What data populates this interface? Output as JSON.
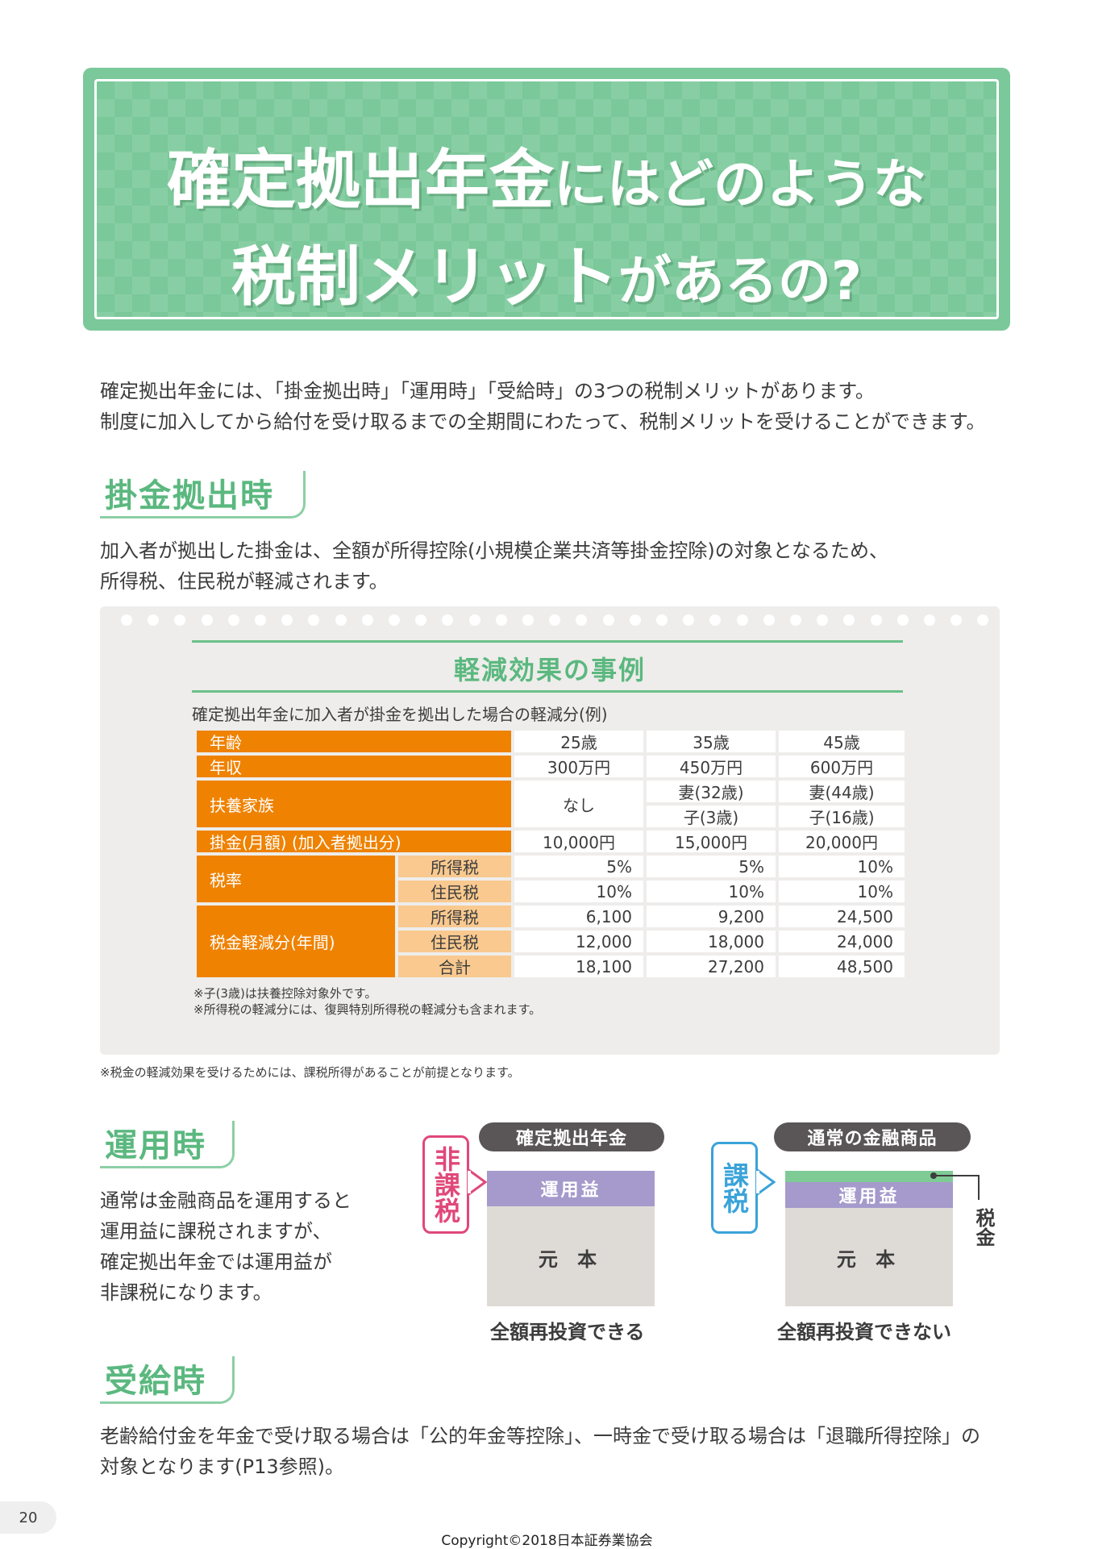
{
  "title": {
    "line1_bold": "確定拠出年金",
    "line1_rest": "にはどのような",
    "line2_bold": "税制メリット",
    "line2_rest": "があるの?"
  },
  "intro": [
    "確定拠出年金には、「掛金拠出時」「運用時」「受給時」の3つの税制メリットがあります。",
    "制度に加入してから給付を受け取るまでの全期間にわたって、税制メリットを受けることができます。"
  ],
  "section1": {
    "heading": "掛金拠出時",
    "text": [
      "加入者が拠出した掛金は、全額が所得控除(小規模企業共済等掛金控除)の対象となるため、",
      "所得税、住民税が軽減されます。"
    ]
  },
  "table": {
    "title": "軽減効果の事例",
    "subtitle": "確定拠出年金に加入者が掛金を拠出した場合の軽減分(例)",
    "rows": {
      "age": {
        "label": "年齢",
        "values": [
          "25歳",
          "35歳",
          "45歳"
        ]
      },
      "income": {
        "label": "年収",
        "values": [
          "300万円",
          "450万円",
          "600万円"
        ]
      },
      "family": {
        "label": "扶養家族",
        "col1": "なし",
        "spouse": [
          "妻(32歳)",
          "妻(44歳)"
        ],
        "child": [
          "子(3歳)",
          "子(16歳)"
        ]
      },
      "contribution": {
        "label": "掛金(月額) (加入者拠出分)",
        "values": [
          "10,000円",
          "15,000円",
          "20,000円"
        ]
      },
      "rate": {
        "label": "税率",
        "income_tax_label": "所得税",
        "income_tax": [
          "5%",
          "5%",
          "10%"
        ],
        "resident_tax_label": "住民税",
        "resident_tax": [
          "10%",
          "10%",
          "10%"
        ]
      },
      "reduction": {
        "label": "税金軽減分(年間)",
        "income_tax_label": "所得税",
        "income_tax": [
          "6,100",
          "9,200",
          "24,500"
        ],
        "resident_tax_label": "住民税",
        "resident_tax": [
          "12,000",
          "18,000",
          "24,000"
        ],
        "total_label": "合計",
        "total": [
          "18,100",
          "27,200",
          "48,500"
        ]
      }
    },
    "notes": [
      "※子(3歳)は扶養控除対象外です。",
      "※所得税の軽減分には、復興特別所得税の軽減分も含まれます。"
    ]
  },
  "footnote": "※税金の軽減効果を受けるためには、課税所得があることが前提となります。",
  "section2": {
    "heading": "運用時",
    "text": [
      "通常は金融商品を運用すると",
      "運用益に課税されますが、",
      "確定拠出年金では運用益が",
      "非課税になります。"
    ],
    "diagram_left": {
      "pill": "確定拠出年金",
      "vlabel": "非課税",
      "gain": "運用益",
      "principal": "元 本",
      "caption": "全額再投資できる"
    },
    "diagram_right": {
      "pill": "通常の金融商品",
      "vlabel": "課税",
      "gain": "運用益",
      "principal": "元 本",
      "tax": "税金",
      "caption": "全額再投資できない"
    },
    "colors": {
      "gain": "#a59acb",
      "principal": "#dedbd7",
      "tax": "#7ecb95",
      "non_taxed": "#e0487a",
      "taxed": "#3aa3d9"
    }
  },
  "section3": {
    "heading": "受給時",
    "text": [
      "老齢給付金を年金で受け取る場合は「公的年金等控除」、一時金で受け取る場合は「退職所得控除」の",
      "対象となります(P13参照)。"
    ]
  },
  "page_number": "20",
  "copyright": "Copyright©2018日本証券業協会"
}
